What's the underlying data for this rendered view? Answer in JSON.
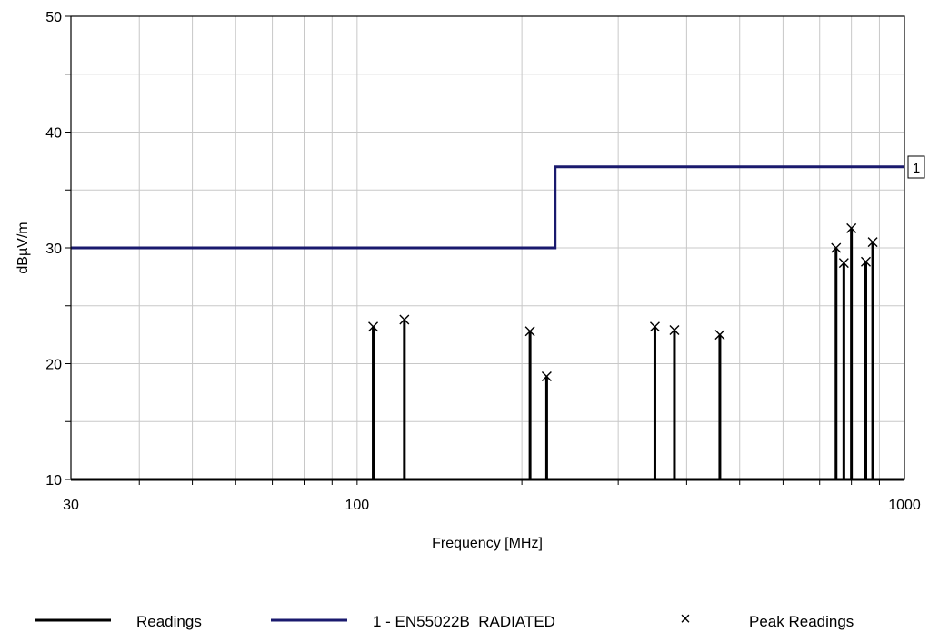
{
  "chart_data": {
    "type": "line",
    "xscale": "log",
    "xlim": [
      30,
      1000
    ],
    "ylim": [
      10,
      50
    ],
    "xlabel": "Frequency [MHz]",
    "ylabel": "dBµV/m",
    "x_ticks": [
      30,
      100,
      1000
    ],
    "x_tick_labels": [
      "30",
      "100",
      "1000"
    ],
    "y_ticks": [
      10,
      20,
      30,
      40,
      50
    ],
    "y_tick_labels": [
      "10",
      "20",
      "30",
      "40",
      "50"
    ],
    "grid": true,
    "legend_position": "bottom",
    "series": [
      {
        "name": "Readings",
        "style": "stem",
        "color": "#000000",
        "x": [
          107,
          122,
          207,
          222,
          350,
          380,
          460,
          750,
          775,
          800,
          850,
          875
        ],
        "y": [
          23.2,
          23.8,
          22.8,
          18.9,
          23.2,
          22.9,
          22.5,
          30.0,
          28.7,
          31.7,
          28.8,
          30.5
        ]
      },
      {
        "name": "1 - EN55022B  RADIATED",
        "style": "step",
        "color": "#1a1a6e",
        "tag": "1",
        "x": [
          30,
          230,
          230,
          1000
        ],
        "y": [
          30,
          30,
          37,
          37
        ]
      },
      {
        "name": "Peak Readings",
        "style": "marker",
        "marker": "×",
        "color": "#000000",
        "x": [
          107,
          122,
          207,
          222,
          350,
          380,
          460,
          750,
          775,
          800,
          850,
          875
        ],
        "y": [
          23.2,
          23.8,
          22.8,
          18.9,
          23.2,
          22.9,
          22.5,
          30.0,
          28.7,
          31.7,
          28.8,
          30.5
        ]
      }
    ]
  }
}
